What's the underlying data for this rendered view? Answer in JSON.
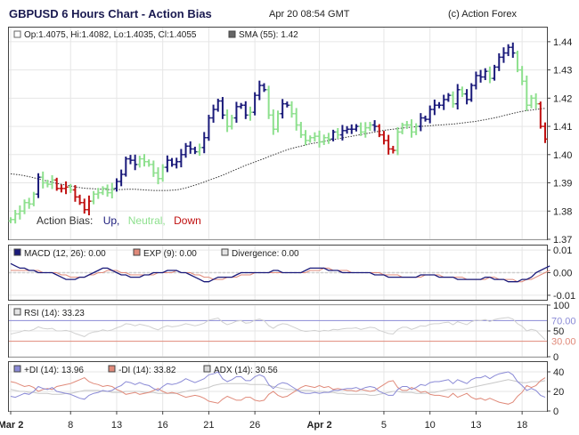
{
  "header": {
    "title": "GBPUSD 6 Hours Chart - Action Bias",
    "timestamp": "Apr 20 08:54 GMT",
    "copyright": "(c) Action Forex"
  },
  "colors": {
    "up": "#1a1a7a",
    "neutral": "#8ee08e",
    "down": "#c01010",
    "macd": "#1a1a7a",
    "exp": "#e08a7a",
    "plus_di": "#8a8ad6",
    "minus_di": "#e08a7a",
    "adx": "#c8c8c8",
    "rsi": "#d0d0d0",
    "grid": "#e6e6e6"
  },
  "x_axis": {
    "labels": [
      "Mar 2",
      "8",
      "13",
      "16",
      "21",
      "26",
      "Apr 2",
      "5",
      "10",
      "13",
      "18"
    ],
    "label_bar_index": [
      0,
      13,
      23,
      33,
      43,
      53,
      67,
      81,
      91,
      101,
      111
    ]
  },
  "chart_data": [
    {
      "type": "ohlc",
      "name": "price",
      "legend": {
        "ohlc_text": "Op:1.4075, Hi:1.4082, Lo:1.4035, Cl:1.4055",
        "sma_text": "SMA (55): 1.42"
      },
      "annotation": {
        "label": "Action Bias:",
        "up": "Up,",
        "neutral": "Neutral,",
        "down": "Down"
      },
      "ylim": [
        1.37,
        1.445
      ],
      "yticks": [
        "1.44",
        "1.43",
        "1.42",
        "1.41",
        "1.40",
        "1.39",
        "1.38",
        "1.37"
      ],
      "ytick_values": [
        1.44,
        1.43,
        1.42,
        1.41,
        1.4,
        1.39,
        1.38,
        1.37
      ],
      "close": [
        1.377,
        1.379,
        1.38,
        1.383,
        1.3825,
        1.386,
        1.392,
        1.39,
        1.3895,
        1.391,
        1.388,
        1.388,
        1.3885,
        1.3875,
        1.385,
        1.383,
        1.3805,
        1.3835,
        1.386,
        1.3865,
        1.388,
        1.3865,
        1.388,
        1.3905,
        1.393,
        1.3985,
        1.398,
        1.3965,
        1.3985,
        1.3975,
        1.3965,
        1.3935,
        1.3915,
        1.3955,
        1.398,
        1.3965,
        1.3975,
        1.4,
        1.403,
        1.402,
        1.401,
        1.4025,
        1.406,
        1.413,
        1.416,
        1.419,
        1.414,
        1.41,
        1.413,
        1.417,
        1.4175,
        1.414,
        1.415,
        1.421,
        1.4245,
        1.423,
        1.414,
        1.409,
        1.4145,
        1.418,
        1.4175,
        1.4145,
        1.4105,
        1.407,
        1.405,
        1.406,
        1.4065,
        1.4045,
        1.406,
        1.4055,
        1.408,
        1.407,
        1.4085,
        1.409,
        1.409,
        1.41,
        1.408,
        1.4095,
        1.4105,
        1.41,
        1.407,
        1.405,
        1.402,
        1.4015,
        1.408,
        1.4105,
        1.4105,
        1.408,
        1.41,
        1.413,
        1.4125,
        1.416,
        1.4175,
        1.4175,
        1.4195,
        1.421,
        1.418,
        1.423,
        1.4215,
        1.4195,
        1.4245,
        1.428,
        1.4275,
        1.4295,
        1.427,
        1.431,
        1.4345,
        1.436,
        1.438,
        1.436,
        1.43,
        1.426,
        1.4175,
        1.42,
        1.418,
        1.41,
        1.4055
      ],
      "sma": [
        1.3932,
        1.393,
        1.3928,
        1.3925,
        1.3922,
        1.3918,
        1.3914,
        1.391,
        1.3906,
        1.3902,
        1.3898,
        1.3895,
        1.3892,
        1.3889,
        1.3886,
        1.3883,
        1.3881,
        1.388,
        1.3879,
        1.3878,
        1.3877,
        1.3876,
        1.3876,
        1.3876,
        1.3876,
        1.3877,
        1.3877,
        1.3877,
        1.3876,
        1.3875,
        1.3874,
        1.3873,
        1.3873,
        1.3873,
        1.3873,
        1.3874,
        1.3875,
        1.3878,
        1.3882,
        1.3887,
        1.3892,
        1.3897,
        1.3903,
        1.3909,
        1.3915,
        1.3921,
        1.3927,
        1.3934,
        1.3941,
        1.3948,
        1.3955,
        1.3962,
        1.3968,
        1.3974,
        1.398,
        1.3986,
        1.3993,
        1.3999,
        1.4005,
        1.4011,
        1.4017,
        1.4022,
        1.4026,
        1.403,
        1.4034,
        1.4038,
        1.4041,
        1.4044,
        1.4047,
        1.405,
        1.4053,
        1.4056,
        1.4059,
        1.4062,
        1.4065,
        1.4068,
        1.4071,
        1.4074,
        1.4077,
        1.408,
        1.4083,
        1.4086,
        1.4088,
        1.409,
        1.4092,
        1.4094,
        1.4096,
        1.4097,
        1.4099,
        1.41,
        1.4101,
        1.4102,
        1.4104,
        1.4105,
        1.4106,
        1.4107,
        1.4108,
        1.411,
        1.4112,
        1.4114,
        1.4116,
        1.4118,
        1.4121,
        1.4124,
        1.4127,
        1.413,
        1.4134,
        1.4138,
        1.4142,
        1.4146,
        1.415,
        1.4153,
        1.4156,
        1.4158,
        1.416,
        1.4162,
        1.4164
      ]
    },
    {
      "type": "line",
      "name": "macd",
      "legend": [
        "MACD (12, 26): 0.00",
        "EXP (9): 0.00",
        "Divergence: 0.00"
      ],
      "ylim": [
        -0.012,
        0.012
      ],
      "yticks": [
        "0.01",
        "0.00",
        "-0.01"
      ],
      "ytick_values": [
        0.01,
        0.0,
        -0.01
      ],
      "series": [
        {
          "key": "macd",
          "values": [
            0.004,
            0.003,
            0.002,
            0.002,
            0.001,
            0.001,
            0.0,
            0.0,
            0.0,
            0.0,
            -0.001,
            -0.002,
            -0.003,
            -0.003,
            -0.003,
            -0.002,
            -0.002,
            -0.001,
            0.0,
            0.001,
            0.002,
            0.002,
            0.001,
            0.0,
            -0.001,
            -0.001,
            -0.002,
            -0.002,
            -0.002,
            -0.001,
            -0.001,
            0.0,
            0.0,
            0.0,
            0.001,
            0.001,
            0.001,
            0.0,
            0.0,
            -0.001,
            -0.002,
            -0.003,
            -0.004,
            -0.004,
            -0.003,
            -0.002,
            -0.002,
            -0.002,
            -0.002,
            -0.001,
            0.0,
            0.0,
            0.0,
            0.0,
            0.0,
            0.0,
            0.0,
            0.001,
            0.001,
            0.0,
            0.0,
            0.0,
            0.0,
            0.0,
            0.001,
            0.002,
            0.002,
            0.002,
            0.002,
            0.001,
            0.001,
            0.001,
            0.0,
            0.0,
            0.0,
            0.0,
            0.0,
            0.0,
            0.0,
            -0.001,
            -0.001,
            -0.001,
            -0.002,
            -0.002,
            -0.002,
            -0.002,
            -0.002,
            -0.002,
            -0.002,
            -0.001,
            -0.001,
            -0.001,
            -0.001,
            -0.002,
            -0.002,
            -0.002,
            -0.002,
            -0.003,
            -0.003,
            -0.003,
            -0.003,
            -0.003,
            -0.003,
            -0.002,
            -0.002,
            -0.003,
            -0.003,
            -0.003,
            -0.004,
            -0.004,
            -0.004,
            -0.003,
            -0.003,
            -0.002,
            0.0,
            0.001,
            0.002,
            0.003
          ]
        },
        {
          "key": "exp",
          "values": [
            0.001,
            0.001,
            0.001,
            0.001,
            0.001,
            0.001,
            0.001,
            0.0,
            0.0,
            0.0,
            0.0,
            -0.001,
            -0.001,
            -0.002,
            -0.002,
            -0.002,
            -0.002,
            -0.001,
            -0.001,
            0.0,
            0.0,
            0.001,
            0.001,
            0.001,
            0.0,
            0.0,
            -0.001,
            -0.001,
            -0.001,
            -0.001,
            -0.001,
            -0.001,
            0.0,
            0.0,
            0.0,
            0.0,
            0.001,
            0.0,
            0.0,
            0.0,
            -0.001,
            -0.001,
            -0.002,
            -0.002,
            -0.003,
            -0.003,
            -0.003,
            -0.002,
            -0.002,
            -0.002,
            -0.001,
            -0.001,
            -0.001,
            0.0,
            0.0,
            0.0,
            0.0,
            0.0,
            0.0,
            0.0,
            0.0,
            0.0,
            0.0,
            0.0,
            0.0,
            0.001,
            0.001,
            0.001,
            0.002,
            0.002,
            0.001,
            0.001,
            0.001,
            0.001,
            0.0,
            0.0,
            0.0,
            0.0,
            0.0,
            0.0,
            0.0,
            -0.001,
            -0.001,
            -0.001,
            -0.001,
            -0.002,
            -0.002,
            -0.002,
            -0.002,
            -0.002,
            -0.001,
            -0.001,
            -0.001,
            -0.001,
            -0.002,
            -0.002,
            -0.002,
            -0.002,
            -0.002,
            -0.003,
            -0.003,
            -0.003,
            -0.003,
            -0.003,
            -0.002,
            -0.002,
            -0.003,
            -0.003,
            -0.003,
            -0.003,
            -0.004,
            -0.004,
            -0.003,
            -0.003,
            -0.002,
            -0.001,
            0.0,
            0.001
          ]
        }
      ]
    },
    {
      "type": "line",
      "name": "rsi",
      "legend": "RSI (14): 33.23",
      "ylim": [
        0,
        100
      ],
      "yticks": [
        "100",
        "50",
        "0"
      ],
      "ytick_values": [
        100,
        50,
        0
      ],
      "levels": [
        {
          "value": 70,
          "label": "70.00",
          "color": "#8a8ad6"
        },
        {
          "value": 30,
          "label": "30.00",
          "color": "#e08a7a"
        }
      ],
      "values": [
        44,
        46,
        48,
        51,
        50,
        53,
        58,
        55,
        54,
        55,
        50,
        50,
        51,
        49,
        45,
        42,
        39,
        45,
        48,
        49,
        52,
        50,
        52,
        56,
        59,
        64,
        63,
        60,
        63,
        61,
        59,
        55,
        52,
        57,
        60,
        58,
        59,
        61,
        64,
        62,
        60,
        62,
        65,
        71,
        73,
        75,
        67,
        62,
        65,
        69,
        70,
        65,
        66,
        71,
        73,
        70,
        60,
        55,
        61,
        64,
        63,
        59,
        55,
        51,
        49,
        50,
        51,
        49,
        51,
        50,
        53,
        52,
        54,
        55,
        55,
        56,
        53,
        55,
        57,
        56,
        51,
        48,
        45,
        44,
        53,
        57,
        57,
        53,
        56,
        60,
        59,
        63,
        64,
        64,
        66,
        67,
        62,
        68,
        65,
        62,
        68,
        71,
        70,
        72,
        68,
        72,
        74,
        75,
        76,
        73,
        64,
        59,
        50,
        53,
        51,
        42,
        33
      ]
    },
    {
      "type": "line",
      "name": "dmi",
      "legend": [
        "+DI (14): 13.96",
        "-DI (14): 33.82",
        "ADX (14): 30.56"
      ],
      "ylim": [
        0,
        50
      ],
      "yticks": [
        "40",
        "20",
        "0"
      ],
      "ytick_values": [
        40,
        20,
        0
      ],
      "series": [
        {
          "key": "plus_di",
          "values": [
            15,
            14,
            16,
            18,
            17,
            20,
            25,
            23,
            22,
            24,
            20,
            19,
            18,
            17,
            15,
            13,
            12,
            16,
            18,
            19,
            21,
            20,
            21,
            24,
            26,
            30,
            29,
            27,
            29,
            27,
            26,
            23,
            21,
            25,
            28,
            27,
            28,
            30,
            33,
            31,
            29,
            31,
            33,
            37,
            38,
            40,
            33,
            30,
            32,
            35,
            35,
            31,
            31,
            35,
            37,
            35,
            27,
            23,
            27,
            29,
            28,
            25,
            22,
            19,
            18,
            18,
            19,
            18,
            19,
            19,
            21,
            21,
            22,
            23,
            23,
            24,
            22,
            24,
            25,
            24,
            20,
            18,
            16,
            16,
            22,
            25,
            25,
            22,
            24,
            27,
            26,
            29,
            30,
            30,
            31,
            32,
            28,
            32,
            30,
            28,
            32,
            34,
            34,
            36,
            33,
            36,
            38,
            39,
            40,
            37,
            30,
            26,
            21,
            23,
            21,
            16,
            14
          ]
        },
        {
          "key": "minus_di",
          "values": [
            30,
            29,
            27,
            25,
            26,
            24,
            20,
            22,
            23,
            22,
            25,
            26,
            27,
            28,
            30,
            32,
            34,
            30,
            28,
            27,
            25,
            26,
            25,
            22,
            20,
            17,
            18,
            19,
            17,
            18,
            19,
            21,
            23,
            20,
            18,
            19,
            18,
            16,
            14,
            15,
            16,
            15,
            13,
            10,
            9,
            8,
            12,
            15,
            13,
            11,
            11,
            14,
            14,
            11,
            10,
            11,
            17,
            20,
            16,
            14,
            15,
            18,
            21,
            24,
            26,
            25,
            24,
            26,
            24,
            25,
            22,
            23,
            22,
            21,
            21,
            20,
            22,
            21,
            20,
            21,
            24,
            27,
            30,
            31,
            24,
            21,
            21,
            24,
            22,
            19,
            20,
            17,
            16,
            16,
            15,
            14,
            18,
            14,
            16,
            18,
            14,
            12,
            13,
            11,
            13,
            11,
            9,
            8,
            7,
            9,
            15,
            19,
            26,
            24,
            26,
            31,
            34
          ]
        },
        {
          "key": "adx",
          "values": [
            22,
            21,
            20,
            20,
            19,
            19,
            18,
            18,
            18,
            17,
            17,
            17,
            18,
            18,
            19,
            20,
            21,
            21,
            21,
            21,
            20,
            20,
            19,
            19,
            19,
            20,
            20,
            20,
            20,
            19,
            19,
            19,
            18,
            18,
            18,
            18,
            18,
            19,
            20,
            21,
            21,
            22,
            23,
            24,
            26,
            27,
            28,
            28,
            28,
            28,
            28,
            28,
            27,
            27,
            27,
            27,
            26,
            25,
            24,
            23,
            22,
            22,
            21,
            21,
            21,
            21,
            20,
            20,
            20,
            19,
            19,
            18,
            18,
            17,
            17,
            17,
            17,
            17,
            16,
            16,
            17,
            18,
            19,
            20,
            20,
            19,
            19,
            19,
            18,
            18,
            18,
            19,
            19,
            20,
            21,
            22,
            22,
            22,
            22,
            23,
            24,
            25,
            26,
            27,
            28,
            29,
            30,
            31,
            32,
            31,
            30,
            29,
            29,
            30,
            30,
            30,
            31
          ]
        }
      ]
    }
  ]
}
